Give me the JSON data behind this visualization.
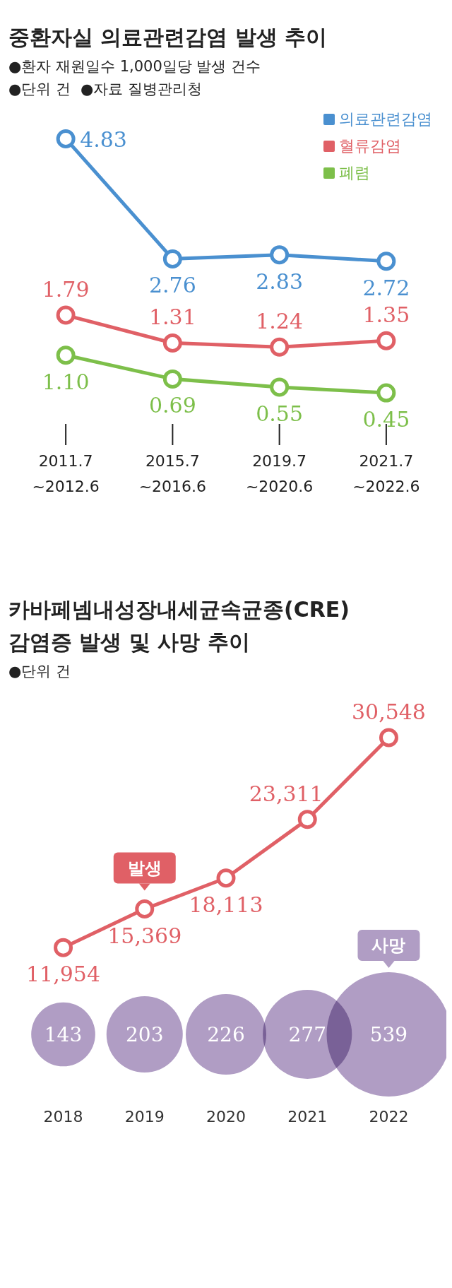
{
  "chart_data": [
    {
      "type": "line",
      "title": "중환자실 의료관련감염 발생 추이",
      "subtitle": "●환자 재원일수 1,000일당 발생 건수",
      "annotations": [
        "●단위 건",
        "●자료 질병관리청"
      ],
      "categories": [
        "2011.7\n~2012.6",
        "2015.7\n~2016.6",
        "2019.7\n~2020.6",
        "2021.7\n~2022.6"
      ],
      "series": [
        {
          "name": "의료관련감염",
          "color": "#4a90d0",
          "values": [
            4.83,
            2.76,
            2.83,
            2.72
          ],
          "value_labels": [
            "4.83",
            "2.76",
            "2.83",
            "2.72"
          ]
        },
        {
          "name": "혈류감염",
          "color": "#e06066",
          "values": [
            1.79,
            1.31,
            1.24,
            1.35
          ],
          "value_labels": [
            "1.79",
            "1.31",
            "1.24",
            "1.35"
          ]
        },
        {
          "name": "폐렴",
          "color": "#7dbf4a",
          "values": [
            1.1,
            0.69,
            0.55,
            0.45
          ],
          "value_labels": [
            "1.10",
            "0.69",
            "0.55",
            "0.45"
          ]
        }
      ],
      "legend": "top right",
      "marker": "circle",
      "tick_labels": "x"
    },
    {
      "type": "line",
      "title": "카바페넴내성장내세균속균종(CRE)\n감염증 발생 및 사망 추이",
      "annotations": [
        "●단위 건"
      ],
      "categories": [
        "2018",
        "2019",
        "2020",
        "2021",
        "2022"
      ],
      "series": [
        {
          "name": "발생",
          "color": "#e06066",
          "values": [
            11954,
            15369,
            18113,
            23311,
            30548
          ],
          "value_labels": [
            "11,954",
            "15,369",
            "18,113",
            "23,311",
            "30,548"
          ]
        }
      ],
      "marker": "circle",
      "tick_labels": "x"
    },
    {
      "type": "other",
      "values": [
        143,
        203,
        226,
        277,
        539
      ],
      "color": "#b09dc4",
      "annotations": [
        "사망"
      ],
      "data_labels": true
    }
  ]
}
